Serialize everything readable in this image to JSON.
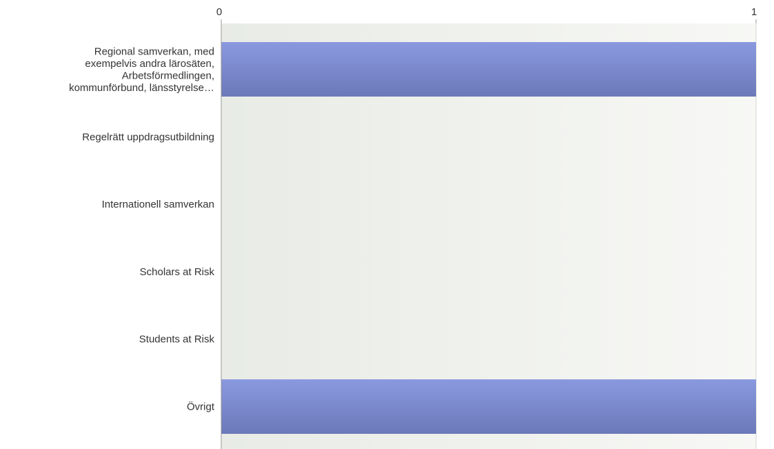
{
  "chart_data": {
    "type": "bar",
    "orientation": "horizontal",
    "title": "",
    "xlabel": "",
    "ylabel": "",
    "categories": [
      {
        "id": "regional",
        "lines": [
          "Regional samverkan, med",
          "exempelvis andra lärosäten,",
          "Arbetsförmedlingen,",
          "kommunförbund, länsstyrelse…"
        ]
      },
      {
        "id": "regelratt",
        "lines": [
          "Regelrätt uppdragsutbildning"
        ]
      },
      {
        "id": "internationell",
        "lines": [
          "Internationell samverkan"
        ]
      },
      {
        "id": "scholars",
        "lines": [
          "Scholars at Risk"
        ]
      },
      {
        "id": "students",
        "lines": [
          "Students at Risk"
        ]
      },
      {
        "id": "ovrigt",
        "lines": [
          "Övrigt"
        ]
      }
    ],
    "values": [
      1,
      0,
      0,
      0,
      0,
      1
    ],
    "xlim": [
      0,
      1
    ],
    "ticks": [
      "0",
      "1"
    ],
    "tick_position": "top",
    "grid": true,
    "colors": {
      "bar_top": "#8a99df",
      "bar_bottom": "#6b79b9",
      "plot_bg_left": "#e8ebe6",
      "plot_bg_right": "#f7f8f5",
      "axis": "#999999",
      "grid": "#d6d8d3"
    }
  }
}
